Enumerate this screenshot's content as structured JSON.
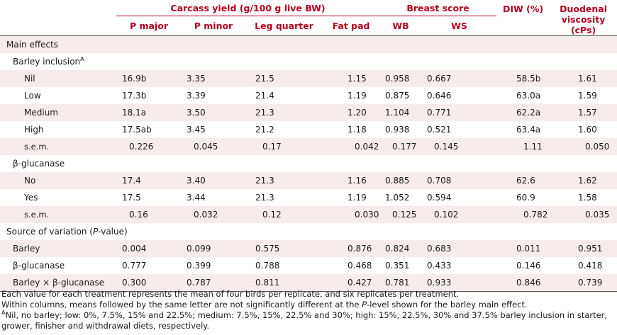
{
  "header": {
    "carcass_group": "Carcass yield (g/100 g live BW)",
    "breast_group": "Breast score",
    "diw": "DIW (%)",
    "viscosity": "Duodenal viscosity (cPs)",
    "p_major": "P major",
    "p_minor": "P minor",
    "leg_quarter": "Leg quarter",
    "fat_pad": "Fat pad",
    "wb": "WB",
    "ws": "WS"
  },
  "sections": {
    "main_effects": "Main effects",
    "barley_inclusion": "Barley inclusion",
    "barley_sup": "A",
    "glucanase": "β-glucanase",
    "source_prefix": "Source of variation (",
    "source_p": "P",
    "source_suffix": "-value)"
  },
  "rows": {
    "nil": [
      "Nil",
      "16.9b",
      "3.35",
      "21.5",
      "1.15",
      "0.958",
      "0.667",
      "58.5b",
      "1.61"
    ],
    "low": [
      "Low",
      "17.3b",
      "3.39",
      "21.4",
      "1.19",
      "0.875",
      "0.646",
      "63.0a",
      "1.59"
    ],
    "medium": [
      "Medium",
      "18.1a",
      "3.50",
      "21.3",
      "1.20",
      "1.104",
      "0.771",
      "62.2a",
      "1.57"
    ],
    "high": [
      "High",
      "17.5ab",
      "3.45",
      "21.2",
      "1.18",
      "0.938",
      "0.521",
      "63.4a",
      "1.60"
    ],
    "sem1": [
      "s.e.m.",
      "0.226",
      "0.045",
      "0.17",
      "0.042",
      "0.177",
      "0.145",
      "1.11",
      "0.050"
    ],
    "no": [
      "No",
      "17.4",
      "3.40",
      "21.3",
      "1.16",
      "0.885",
      "0.708",
      "62.6",
      "1.62"
    ],
    "yes": [
      "Yes",
      "17.5",
      "3.44",
      "21.3",
      "1.19",
      "1.052",
      "0.594",
      "60.9",
      "1.58"
    ],
    "sem2": [
      "s.e.m.",
      "0.16",
      "0.032",
      "0.12",
      "0.030",
      "0.125",
      "0.102",
      "0.782",
      "0.035"
    ],
    "barley": [
      "Barley",
      "0.004",
      "0.099",
      "0.575",
      "0.876",
      "0.824",
      "0.683",
      "0.011",
      "0.951"
    ],
    "gluc": [
      "β-glucanase",
      "0.777",
      "0.399",
      "0.788",
      "0.468",
      "0.351",
      "0.433",
      "0.146",
      "0.418"
    ],
    "inter": [
      "Barley × β-glucanase",
      "0.300",
      "0.787",
      "0.811",
      "0.427",
      "0.781",
      "0.933",
      "0.846",
      "0.739"
    ]
  },
  "notes": {
    "line1": "Each value for each treatment represents the mean of four birds per replicate, and six replicates per treatment.",
    "line2_a": "Within columns, means followed by the same letter are not significantly different at the ",
    "line2_p": "P",
    "line2_b": "-level shown for the barley main effect.",
    "line3_sup": "A",
    "line3": "Nil, no barley; low: 0%, 7.5%, 15% and 22.5%; medium: 7.5%, 15%, 22.5% and 30%; high: 15%, 22.5%, 30% and 37.5% barley inclusion in starter, grower, finisher and withdrawal diets, respectively."
  }
}
